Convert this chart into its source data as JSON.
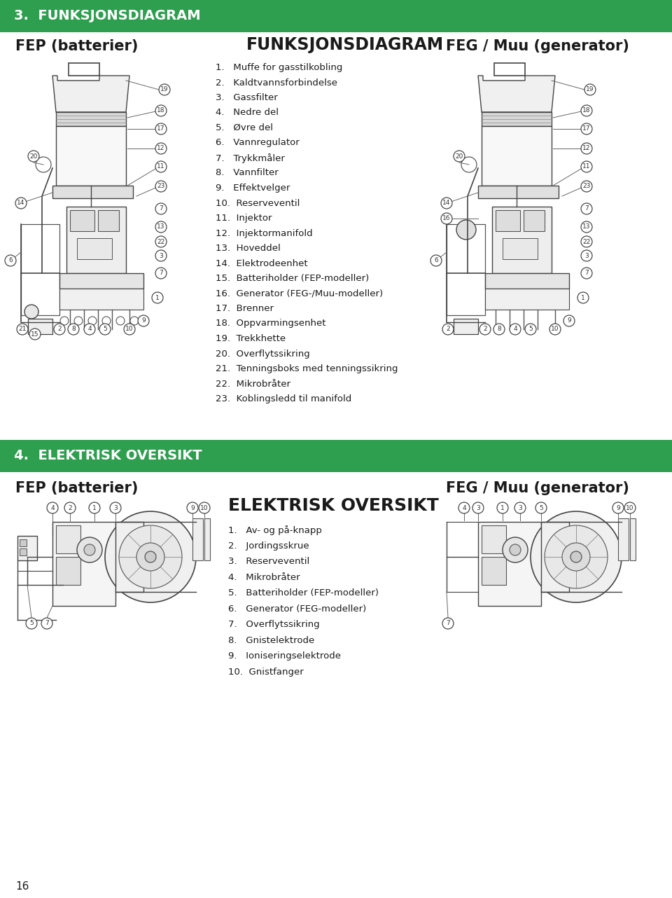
{
  "page_bg": "#ffffff",
  "header_bg": "#2e9e4f",
  "header_text_color": "#ffffff",
  "header1_text": "3.  FUNKSJONSDIAGRAM",
  "header2_text": "4.  ELEKTRISK OVERSIKT",
  "fep_battery_title": "FEP (batterier)",
  "feg_muu_title1": "FEG / Muu (generator)",
  "feg_muu_title2": "FEG / Muu (generator)",
  "fep_battery_title2": "FEP (batterier)",
  "funksjons_title": "FUNKSJONSDIAGRAM",
  "elektrisk_title": "ELEKTRISK OVERSIKT",
  "funksjons_items": [
    "1.   Muffe for gasstilkobling",
    "2.   Kaldtvannsforbindelse",
    "3.   Gassfilter",
    "4.   Nedre del",
    "5.   Øvre del",
    "6.   Vannregulator",
    "7.   Trykkmåler",
    "8.   Vannfilter",
    "9.   Effektvelger",
    "10.  Reserveventil",
    "11.  Injektor",
    "12.  Injektormanifold",
    "13.  Hoveddel",
    "14.  Elektrodeenhet",
    "15.  Batteriholder (FEP-modeller)",
    "16.  Generator (FEG-/Muu-modeller)",
    "17.  Brenner",
    "18.  Oppvarmingsenhet",
    "19.  Trekkhette",
    "20.  Overflytssikring",
    "21.  Tenningsboks med tenningssikring",
    "22.  Mikrobråter",
    "23.  Koblingsledd til manifold"
  ],
  "elektrisk_items": [
    "1.   Av- og på-knapp",
    "2.   Jordingsskrue",
    "3.   Reserveventil",
    "4.   Mikrobråter",
    "5.   Batteriholder (FEP-modeller)",
    "6.   Generator (FEG-modeller)",
    "7.   Overflytssikring",
    "8.   Gnistelektrode",
    "9.   Ioniseringselektrode",
    "10.  Gnistfanger"
  ],
  "page_number": "16",
  "item_fontsize": 9.5,
  "title_fontsize": 15,
  "section_title_fontsize": 16,
  "header_fontsize": 14
}
